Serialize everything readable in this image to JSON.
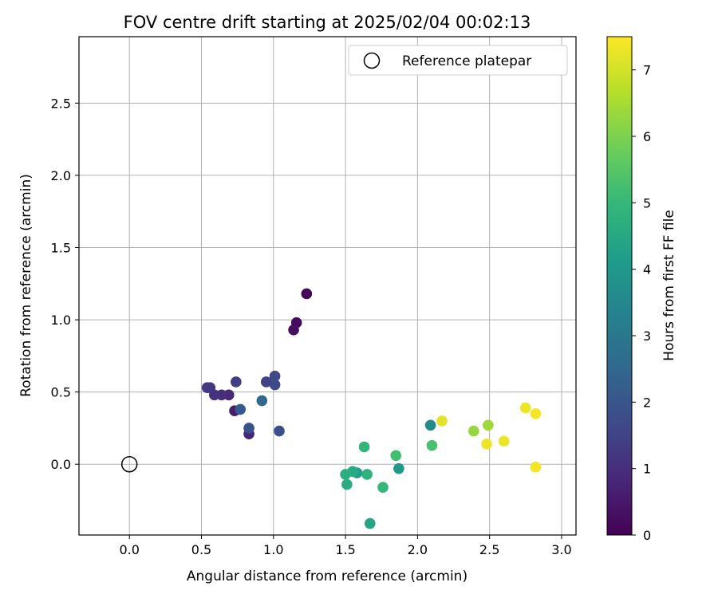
{
  "chart_data": {
    "type": "scatter",
    "title": "FOV centre drift starting at 2025/02/04 00:02:13",
    "xlabel": "Angular distance from reference (arcmin)",
    "ylabel": "Rotation from reference (arcmin)",
    "xlim": [
      -0.35,
      3.1
    ],
    "ylim": [
      -0.49,
      2.96
    ],
    "xticks": [
      0.0,
      0.5,
      1.0,
      1.5,
      2.0,
      2.5,
      3.0
    ],
    "xtick_labels": [
      "0.0",
      "0.5",
      "1.0",
      "1.5",
      "2.0",
      "2.5",
      "3.0"
    ],
    "yticks": [
      0.0,
      0.5,
      1.0,
      1.5,
      2.0,
      2.5
    ],
    "ytick_labels": [
      "0.0",
      "0.5",
      "1.0",
      "1.5",
      "2.0",
      "2.5"
    ],
    "grid": true,
    "legend": {
      "placement": "top-right",
      "entries": [
        "Reference platepar"
      ]
    },
    "reference_point": {
      "x": 0.0,
      "y": 0.0
    },
    "colorbar": {
      "label": "Hours from first FF file",
      "range": [
        0,
        7.5
      ],
      "ticks": [
        0,
        1,
        2,
        3,
        4,
        5,
        6,
        7
      ],
      "tick_labels": [
        "0",
        "1",
        "2",
        "3",
        "4",
        "5",
        "6",
        "7"
      ],
      "colormap": "viridis"
    },
    "points": [
      {
        "x": 1.23,
        "y": 1.18,
        "h": 0.1
      },
      {
        "x": 1.16,
        "y": 0.98,
        "h": 0.2
      },
      {
        "x": 1.14,
        "y": 0.93,
        "h": 0.3
      },
      {
        "x": 0.73,
        "y": 0.37,
        "h": 0.6
      },
      {
        "x": 0.83,
        "y": 0.21,
        "h": 0.8
      },
      {
        "x": 0.69,
        "y": 0.48,
        "h": 0.9
      },
      {
        "x": 0.64,
        "y": 0.48,
        "h": 1.0
      },
      {
        "x": 0.59,
        "y": 0.48,
        "h": 1.1
      },
      {
        "x": 0.56,
        "y": 0.53,
        "h": 1.2
      },
      {
        "x": 0.54,
        "y": 0.53,
        "h": 1.3
      },
      {
        "x": 0.74,
        "y": 0.57,
        "h": 1.4
      },
      {
        "x": 0.95,
        "y": 0.57,
        "h": 1.5
      },
      {
        "x": 1.01,
        "y": 0.61,
        "h": 1.6
      },
      {
        "x": 1.01,
        "y": 0.55,
        "h": 1.7
      },
      {
        "x": 1.04,
        "y": 0.23,
        "h": 1.8
      },
      {
        "x": 0.83,
        "y": 0.25,
        "h": 1.9
      },
      {
        "x": 0.77,
        "y": 0.38,
        "h": 2.1
      },
      {
        "x": 0.92,
        "y": 0.44,
        "h": 2.5
      },
      {
        "x": 2.09,
        "y": 0.27,
        "h": 3.6
      },
      {
        "x": 1.87,
        "y": -0.03,
        "h": 4.0
      },
      {
        "x": 1.58,
        "y": -0.06,
        "h": 4.2
      },
      {
        "x": 1.67,
        "y": -0.41,
        "h": 4.4
      },
      {
        "x": 1.55,
        "y": -0.05,
        "h": 4.5
      },
      {
        "x": 1.51,
        "y": -0.14,
        "h": 4.6
      },
      {
        "x": 1.5,
        "y": -0.07,
        "h": 4.7
      },
      {
        "x": 1.65,
        "y": -0.07,
        "h": 4.8
      },
      {
        "x": 1.63,
        "y": 0.12,
        "h": 4.9
      },
      {
        "x": 1.76,
        "y": -0.16,
        "h": 5.0
      },
      {
        "x": 1.85,
        "y": 0.06,
        "h": 5.2
      },
      {
        "x": 2.1,
        "y": 0.13,
        "h": 5.3
      },
      {
        "x": 2.39,
        "y": 0.23,
        "h": 6.3
      },
      {
        "x": 2.49,
        "y": 0.27,
        "h": 6.4
      },
      {
        "x": 2.17,
        "y": 0.3,
        "h": 7.2
      },
      {
        "x": 2.48,
        "y": 0.14,
        "h": 7.3
      },
      {
        "x": 2.6,
        "y": 0.16,
        "h": 7.3
      },
      {
        "x": 2.75,
        "y": 0.39,
        "h": 7.3
      },
      {
        "x": 2.82,
        "y": 0.35,
        "h": 7.4
      },
      {
        "x": 2.82,
        "y": -0.02,
        "h": 7.4
      }
    ]
  }
}
